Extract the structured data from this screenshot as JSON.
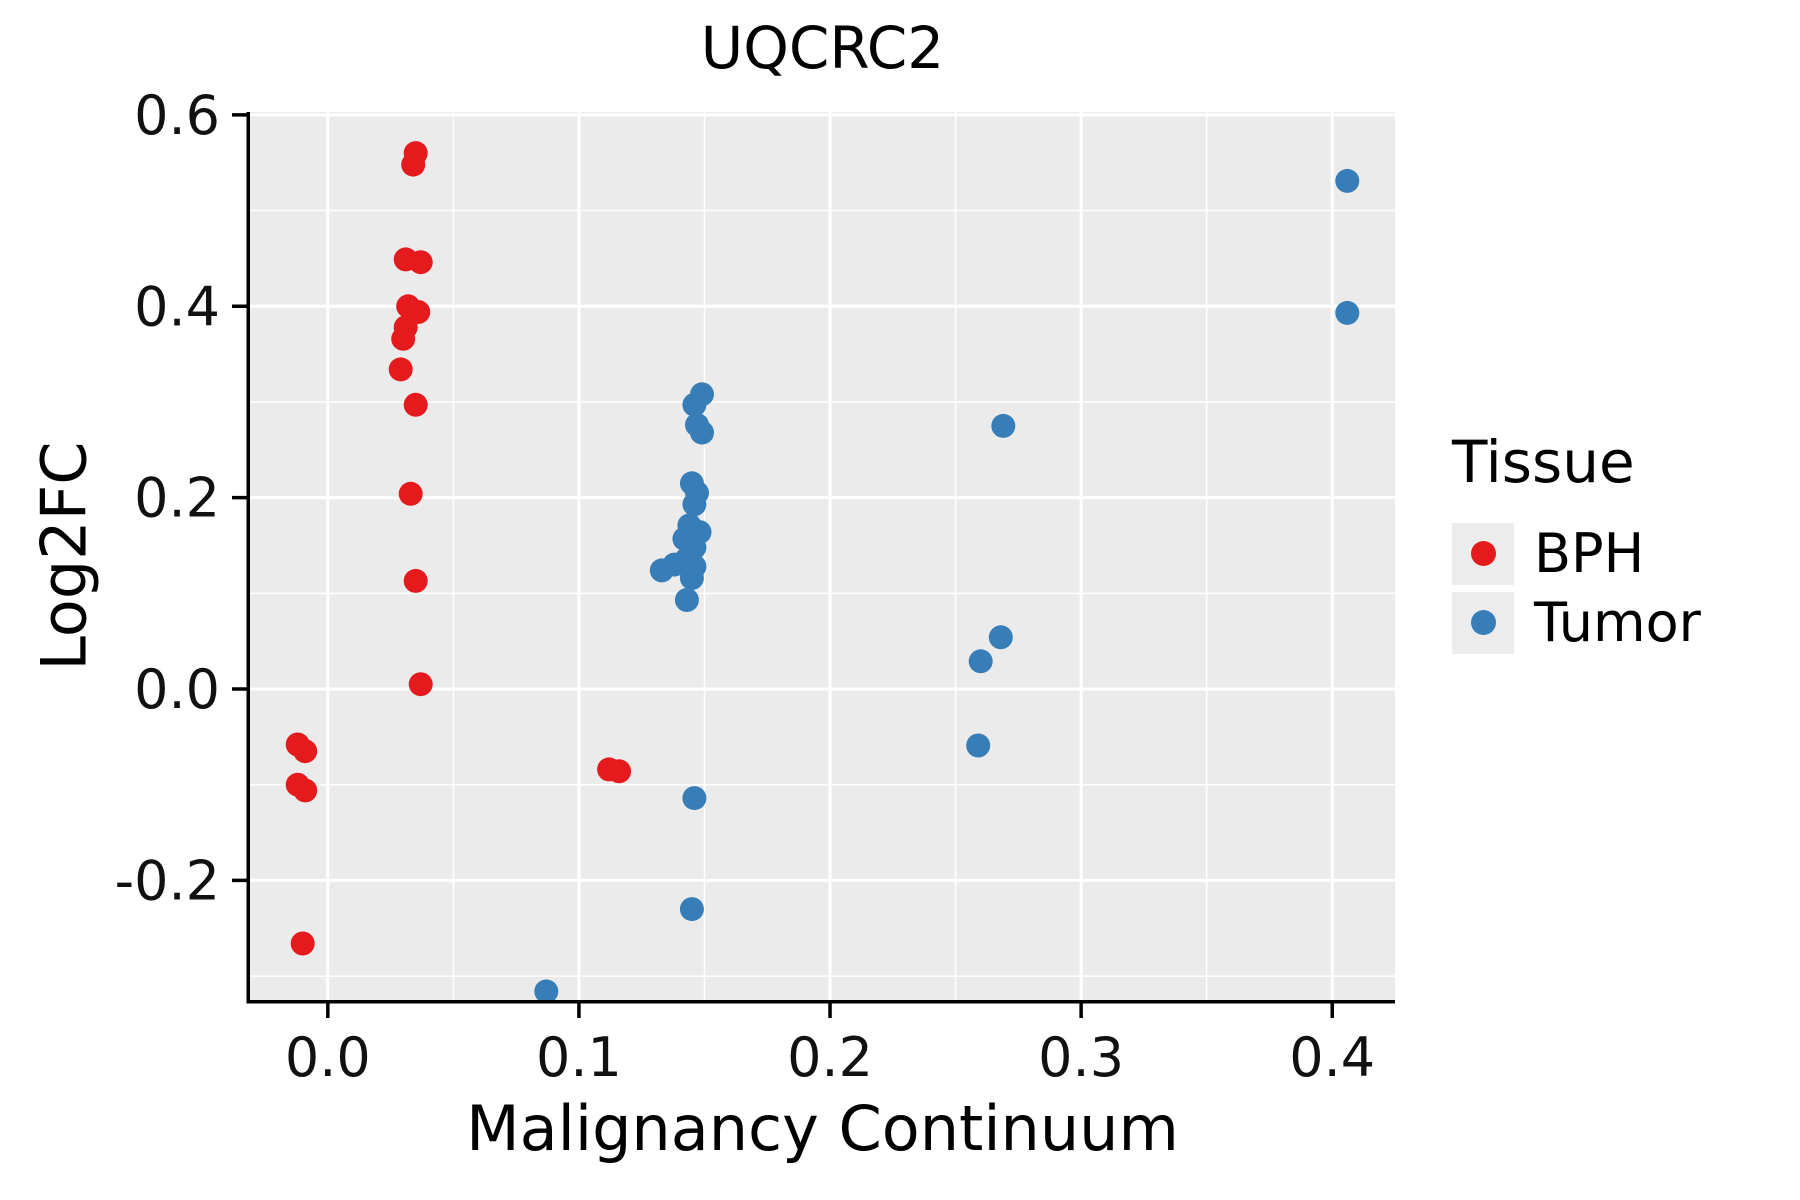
{
  "chart_data": {
    "type": "scatter",
    "title": "UQCRC2",
    "xlabel": "Malignancy Continuum",
    "ylabel": "Log2FC",
    "legend": {
      "title": "Tissue",
      "position": "right"
    },
    "xlim": [
      -0.031,
      0.425
    ],
    "ylim": [
      -0.325,
      0.603
    ],
    "xticks": [
      0.0,
      0.1,
      0.2,
      0.3,
      0.4
    ],
    "xtick_labels": [
      "0.0",
      "0.1",
      "0.2",
      "0.3",
      "0.4"
    ],
    "yticks": [
      -0.2,
      0.0,
      0.2,
      0.4,
      0.6
    ],
    "ytick_labels": [
      "-0.2",
      "0.0",
      "0.2",
      "0.4",
      "0.6"
    ],
    "minor_xticks": [
      0.05,
      0.15,
      0.25,
      0.35
    ],
    "minor_yticks": [
      -0.3,
      -0.1,
      0.1,
      0.3,
      0.5
    ],
    "grid": true,
    "panel_background": "#EBEBEB",
    "grid_color": "#FFFFFF",
    "axis_color": "#000000",
    "point_radius": 12,
    "series": [
      {
        "name": "BPH",
        "color": "#E41A1C",
        "points": [
          [
            0.035,
            0.56
          ],
          [
            0.034,
            0.548
          ],
          [
            0.031,
            0.449
          ],
          [
            0.037,
            0.446
          ],
          [
            0.032,
            0.4
          ],
          [
            0.036,
            0.394
          ],
          [
            0.031,
            0.378
          ],
          [
            0.03,
            0.366
          ],
          [
            0.029,
            0.334
          ],
          [
            0.035,
            0.297
          ],
          [
            0.033,
            0.204
          ],
          [
            0.035,
            0.113
          ],
          [
            0.037,
            0.005
          ],
          [
            -0.012,
            -0.058
          ],
          [
            -0.009,
            -0.065
          ],
          [
            -0.012,
            -0.1
          ],
          [
            -0.009,
            -0.106
          ],
          [
            0.112,
            -0.084
          ],
          [
            0.116,
            -0.086
          ],
          [
            -0.01,
            -0.266
          ]
        ]
      },
      {
        "name": "Tumor",
        "color": "#377EB8",
        "points": [
          [
            0.406,
            0.531
          ],
          [
            0.406,
            0.393
          ],
          [
            0.149,
            0.308
          ],
          [
            0.146,
            0.297
          ],
          [
            0.147,
            0.276
          ],
          [
            0.149,
            0.268
          ],
          [
            0.269,
            0.275
          ],
          [
            0.145,
            0.215
          ],
          [
            0.147,
            0.205
          ],
          [
            0.146,
            0.193
          ],
          [
            0.144,
            0.171
          ],
          [
            0.148,
            0.164
          ],
          [
            0.142,
            0.157
          ],
          [
            0.146,
            0.148
          ],
          [
            0.143,
            0.136
          ],
          [
            0.138,
            0.13
          ],
          [
            0.146,
            0.128
          ],
          [
            0.133,
            0.124
          ],
          [
            0.145,
            0.116
          ],
          [
            0.143,
            0.093
          ],
          [
            0.268,
            0.054
          ],
          [
            0.26,
            0.029
          ],
          [
            0.259,
            -0.059
          ],
          [
            0.146,
            -0.114
          ],
          [
            0.145,
            -0.23
          ],
          [
            0.087,
            -0.316
          ]
        ]
      }
    ]
  }
}
